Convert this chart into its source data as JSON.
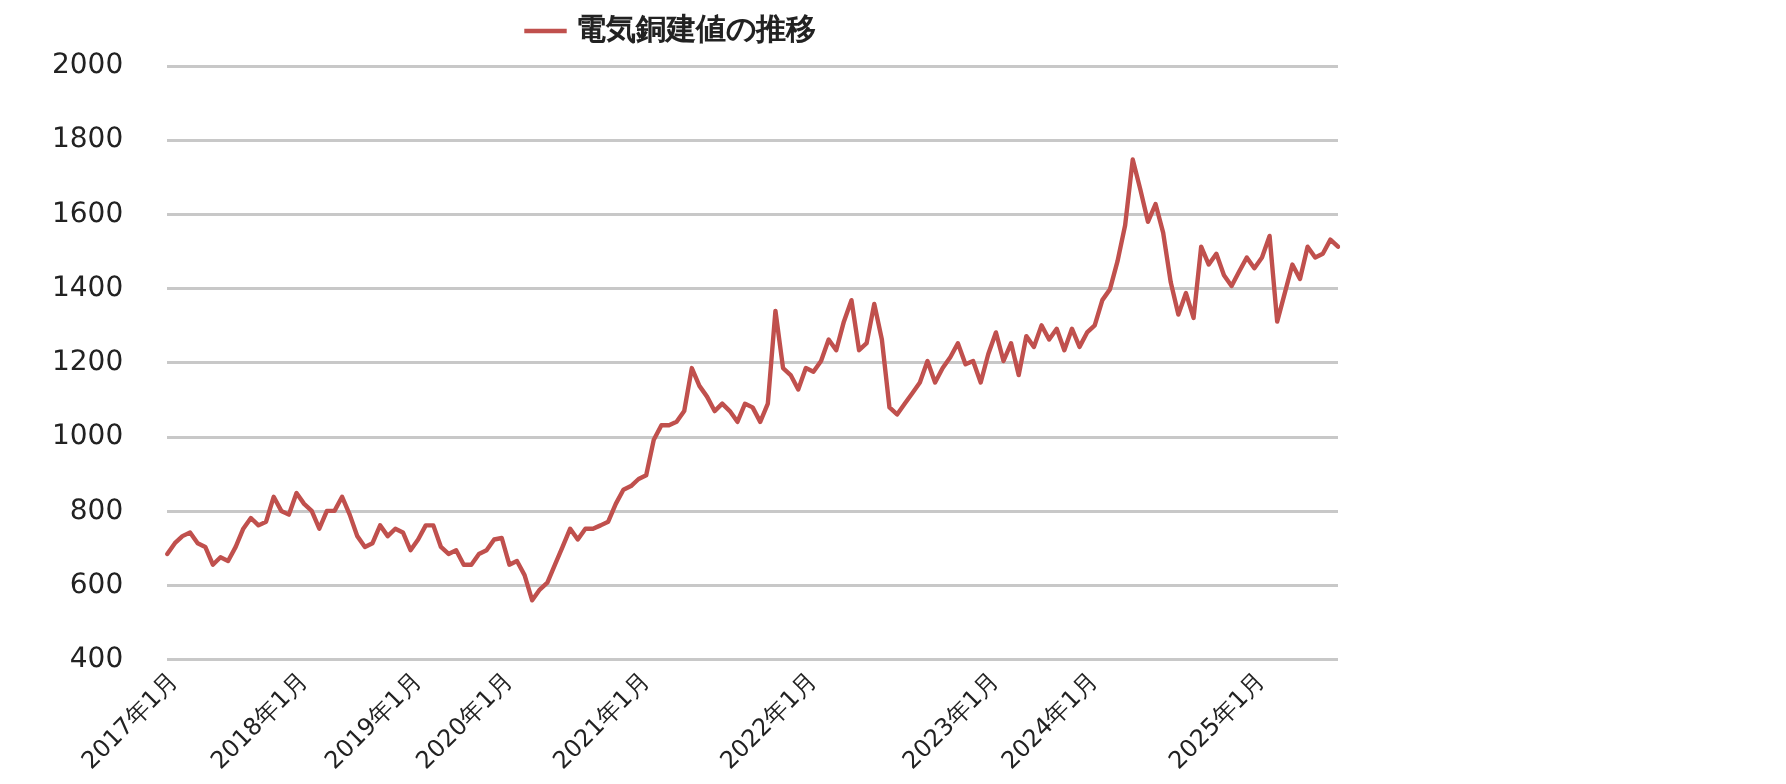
{
  "chart_data": {
    "type": "line",
    "legend": "top",
    "grid": "y",
    "marker": "none",
    "line_style": "solid",
    "ylim": [
      400,
      2000
    ],
    "yticks": [
      400,
      600,
      800,
      1000,
      1200,
      1400,
      1600,
      1800,
      2000
    ],
    "categories": [
      null,
      "2017年1月",
      null,
      null,
      null,
      null,
      null,
      null,
      null,
      null,
      null,
      null,
      null,
      null,
      null,
      null,
      null,
      null,
      "2018年1月",
      null,
      null,
      null,
      null,
      null,
      null,
      null,
      null,
      null,
      null,
      null,
      null,
      null,
      null,
      "2019年1月",
      null,
      null,
      null,
      null,
      null,
      null,
      null,
      null,
      null,
      null,
      null,
      "2020年1月",
      null,
      null,
      null,
      null,
      null,
      null,
      null,
      null,
      null,
      null,
      null,
      null,
      null,
      null,
      null,
      null,
      null,
      "2021年1月",
      null,
      null,
      null,
      null,
      null,
      null,
      null,
      null,
      null,
      null,
      null,
      null,
      null,
      null,
      null,
      null,
      null,
      null,
      null,
      null,
      null,
      "2022年1月",
      null,
      null,
      null,
      null,
      null,
      null,
      null,
      null,
      null,
      null,
      null,
      null,
      null,
      null,
      null,
      null,
      null,
      null,
      null,
      null,
      null,
      null,
      null,
      "2023年1月",
      null,
      null,
      null,
      null,
      null,
      null,
      null,
      null,
      null,
      null,
      null,
      null,
      "2024年1月",
      null,
      null,
      null,
      null,
      null,
      null,
      null,
      null,
      null,
      null,
      null,
      null,
      null,
      null,
      null,
      null,
      null,
      null,
      null,
      null,
      null,
      "2025年1月",
      null,
      null,
      null,
      null,
      null,
      null,
      null,
      null,
      null,
      null
    ],
    "series": [
      {
        "name": "電気銅建値の推移",
        "color": "#c0504d",
        "values": [
          685,
          714,
          733,
          743,
          714,
          704,
          656,
          676,
          666,
          704,
          753,
          782,
          762,
          772,
          839,
          801,
          791,
          849,
          820,
          801,
          753,
          801,
          801,
          839,
          791,
          733,
          704,
          714,
          762,
          733,
          753,
          743,
          695,
          724,
          762,
          762,
          704,
          685,
          695,
          656,
          656,
          685,
          695,
          724,
          728,
          656,
          666,
          628,
          560,
          589,
          608,
          656,
          704,
          753,
          724,
          753,
          753,
          762,
          772,
          820,
          858,
          868,
          887,
          897,
          993,
          1032,
          1032,
          1041,
          1070,
          1186,
          1138,
          1109,
          1070,
          1090,
          1070,
          1041,
          1090,
          1080,
          1041,
          1090,
          1340,
          1186,
          1167,
          1128,
          1186,
          1176,
          1205,
          1263,
          1234,
          1311,
          1369,
          1234,
          1253,
          1359,
          1263,
          1080,
          1061,
          1090,
          1118,
          1147,
          1205,
          1147,
          1186,
          1215,
          1253,
          1196,
          1205,
          1147,
          1224,
          1282,
          1205,
          1253,
          1167,
          1272,
          1243,
          1301,
          1263,
          1292,
          1234,
          1292,
          1243,
          1282,
          1301,
          1369,
          1398,
          1474,
          1571,
          1748,
          1667,
          1580,
          1628,
          1551,
          1417,
          1330,
          1388,
          1321,
          1513,
          1465,
          1494,
          1436,
          1407,
          1446,
          1484,
          1455,
          1484,
          1542,
          1311,
          1388,
          1465,
          1426,
          1513,
          1484,
          1494,
          1532,
          1513
        ]
      }
    ]
  }
}
